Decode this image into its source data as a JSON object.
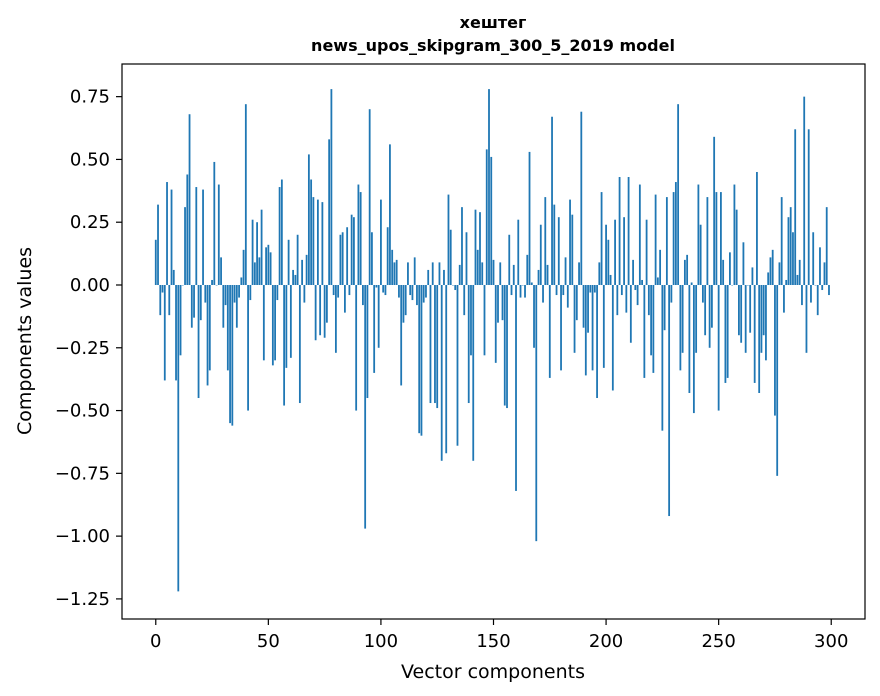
{
  "chart_data": {
    "type": "bar",
    "title_line1": "хештег",
    "title_line2": "news_upos_skipgram_300_5_2019 model",
    "xlabel": "Vector components",
    "ylabel": "Components values",
    "xlim": [
      -15,
      315
    ],
    "ylim": [
      -1.33,
      0.88
    ],
    "xticks": [
      0,
      50,
      100,
      150,
      200,
      250,
      300
    ],
    "xtick_labels": [
      "0",
      "50",
      "100",
      "150",
      "200",
      "250",
      "300"
    ],
    "yticks": [
      0.75,
      0.5,
      0.25,
      0.0,
      -0.25,
      -0.5,
      -0.75,
      -1.0,
      -1.25
    ],
    "ytick_labels": [
      "0.75",
      "0.50",
      "0.25",
      "0.00",
      "−0.25",
      "−0.50",
      "−0.75",
      "−1.00",
      "−1.25"
    ],
    "bar_color": "#1f77b4",
    "x": "indices 0..299",
    "values": [
      0.18,
      0.32,
      -0.12,
      -0.03,
      -0.38,
      0.41,
      -0.12,
      0.38,
      0.06,
      -0.38,
      -1.22,
      -0.28,
      0.0,
      0.31,
      0.44,
      0.68,
      -0.17,
      -0.13,
      0.39,
      -0.45,
      -0.14,
      0.38,
      -0.07,
      -0.4,
      -0.34,
      0.02,
      0.49,
      0.0,
      0.4,
      0.11,
      -0.17,
      -0.08,
      -0.34,
      -0.55,
      -0.56,
      -0.07,
      -0.17,
      -0.05,
      0.03,
      0.14,
      0.72,
      -0.5,
      -0.06,
      0.26,
      0.09,
      0.25,
      0.11,
      0.3,
      -0.3,
      0.15,
      0.16,
      0.13,
      -0.32,
      -0.3,
      -0.06,
      0.39,
      0.42,
      -0.48,
      -0.33,
      0.18,
      -0.29,
      0.06,
      0.04,
      0.2,
      -0.47,
      0.1,
      -0.07,
      0.12,
      0.52,
      0.42,
      0.35,
      -0.22,
      0.34,
      -0.2,
      0.33,
      -0.21,
      -0.15,
      0.58,
      0.78,
      -0.04,
      -0.27,
      -0.05,
      0.2,
      0.21,
      -0.11,
      0.23,
      -0.04,
      0.28,
      0.27,
      -0.5,
      0.4,
      0.37,
      -0.08,
      -0.97,
      -0.45,
      0.7,
      0.21,
      -0.35,
      -0.01,
      -0.25,
      0.34,
      -0.03,
      -0.04,
      0.23,
      0.56,
      0.14,
      0.09,
      0.1,
      -0.05,
      -0.4,
      -0.15,
      -0.12,
      0.09,
      -0.04,
      -0.06,
      0.11,
      -0.08,
      -0.59,
      -0.6,
      -0.07,
      -0.05,
      0.06,
      -0.47,
      0.09,
      -0.47,
      -0.49,
      0.09,
      -0.7,
      0.06,
      -0.67,
      0.36,
      0.22,
      0.0,
      -0.02,
      -0.64,
      0.08,
      0.31,
      -0.12,
      0.21,
      -0.47,
      -0.28,
      -0.7,
      0.3,
      0.14,
      0.29,
      0.09,
      -0.28,
      0.54,
      0.78,
      0.51,
      0.1,
      -0.31,
      -0.15,
      0.09,
      -0.14,
      -0.48,
      -0.49,
      0.2,
      -0.04,
      0.08,
      -0.82,
      0.26,
      -0.05,
      0.0,
      -0.05,
      0.12,
      0.53,
      0.01,
      -0.25,
      -1.02,
      0.06,
      0.24,
      -0.07,
      0.35,
      0.08,
      -0.37,
      0.67,
      0.32,
      -0.04,
      0.27,
      -0.34,
      -0.04,
      0.11,
      -0.09,
      0.34,
      0.28,
      -0.27,
      -0.14,
      0.09,
      0.69,
      -0.17,
      -0.36,
      -0.19,
      -0.03,
      -0.34,
      -0.03,
      -0.45,
      0.09,
      0.37,
      -0.33,
      0.24,
      0.18,
      0.04,
      -0.42,
      0.26,
      -0.12,
      0.43,
      -0.04,
      0.27,
      -0.11,
      0.43,
      -0.23,
      0.1,
      -0.02,
      -0.08,
      0.4,
      0.02,
      -0.37,
      0.26,
      -0.12,
      -0.28,
      -0.35,
      0.36,
      0.03,
      0.14,
      -0.58,
      -0.18,
      0.35,
      -0.92,
      -0.07,
      0.37,
      0.41,
      0.72,
      -0.34,
      -0.27,
      0.1,
      0.12,
      -0.43,
      0.01,
      -0.51,
      -0.27,
      0.4,
      0.24,
      -0.07,
      -0.2,
      0.35,
      -0.25,
      -0.17,
      0.59,
      0.37,
      -0.5,
      0.37,
      0.1,
      -0.39,
      -0.37,
      0.13,
      0.0,
      0.4,
      0.3,
      -0.2,
      -0.23,
      0.17,
      -0.27,
      0.0,
      -0.19,
      0.07,
      -0.39,
      0.45,
      -0.43,
      -0.27,
      -0.2,
      -0.3,
      0.05,
      0.11,
      0.14,
      -0.52,
      -0.76,
      0.09,
      0.35,
      -0.11,
      0.02,
      0.27,
      0.31,
      0.21,
      0.62,
      0.04,
      0.1,
      -0.08,
      0.75,
      -0.27,
      0.62,
      -0.07,
      0.21,
      0.0,
      -0.12,
      0.15,
      -0.02,
      0.09,
      0.31,
      -0.04
    ]
  }
}
